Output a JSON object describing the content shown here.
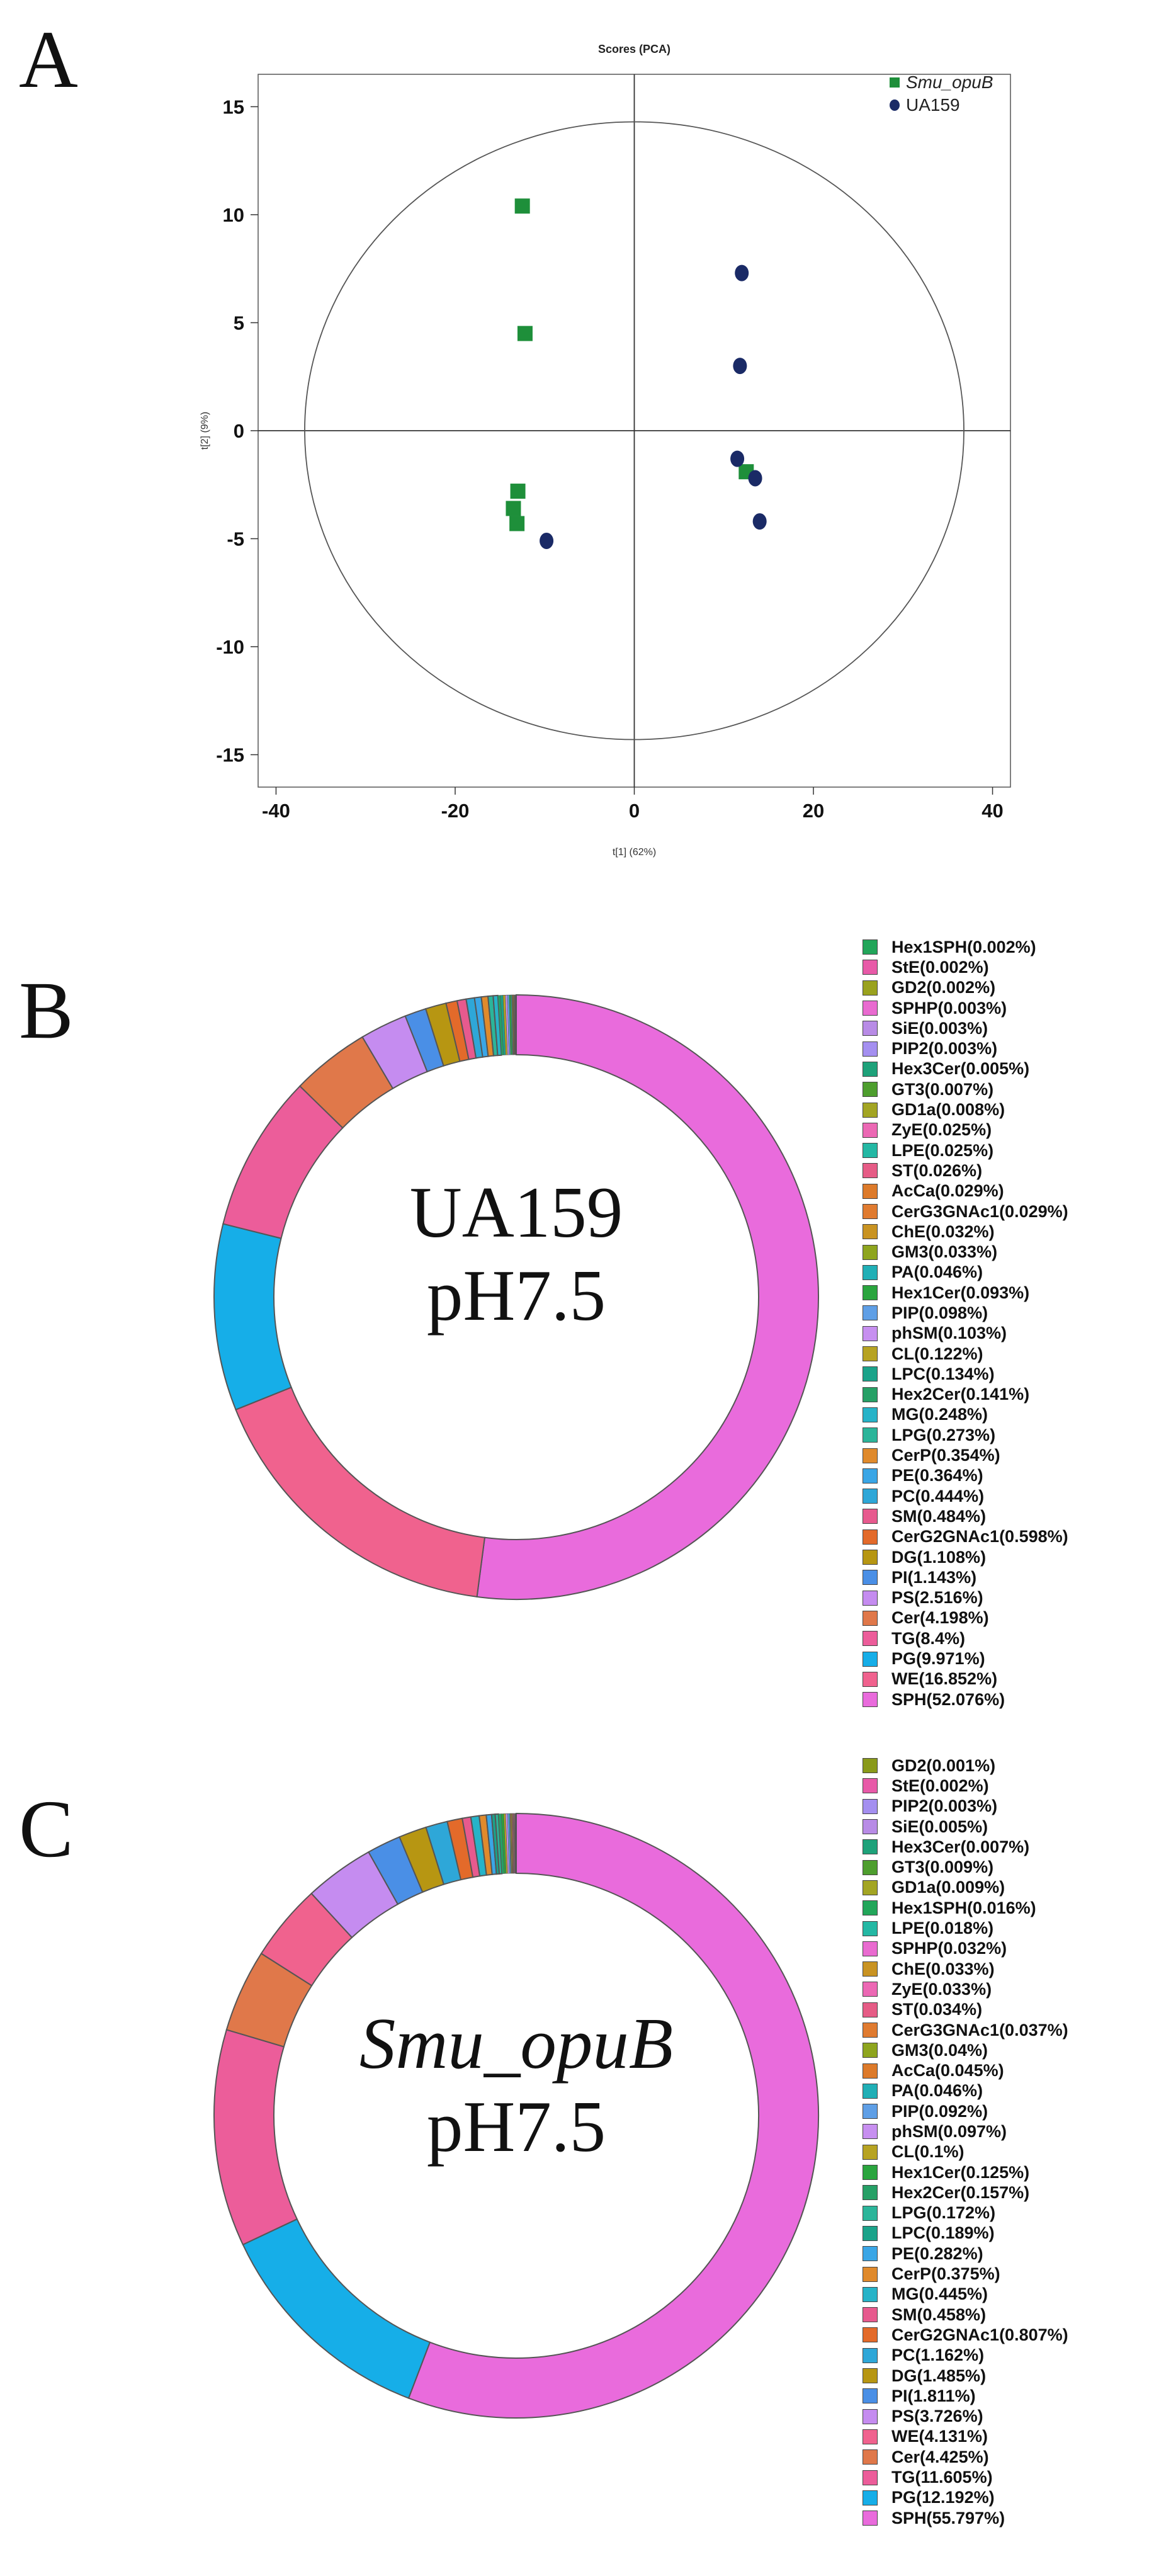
{
  "panels": {
    "a": "A",
    "b": "B",
    "c": "C"
  },
  "chart_data": [
    {
      "type": "scatter",
      "title": "Scores (PCA)",
      "xlabel": "t[1] (62%)",
      "ylabel": "t[2] (9%)",
      "xlim": [
        -42,
        42
      ],
      "ylim": [
        -16.5,
        16.5
      ],
      "xticks": [
        -40,
        -20,
        0,
        20,
        40
      ],
      "yticks": [
        -15,
        -10,
        -5,
        0,
        5,
        10,
        15
      ],
      "ellipse": {
        "rx": 36.8,
        "ry": 14.3
      },
      "series": [
        {
          "name": "Smu_opuB",
          "marker": "square",
          "color": "#1e8f3a",
          "points": [
            [
              -12.5,
              10.4
            ],
            [
              -12.2,
              4.5
            ],
            [
              -13.0,
              -2.8
            ],
            [
              -13.5,
              -3.6
            ],
            [
              -13.1,
              -4.3
            ],
            [
              12.5,
              -1.9
            ]
          ]
        },
        {
          "name": "UA159",
          "marker": "circle",
          "color": "#1a2a66",
          "points": [
            [
              12.0,
              7.3
            ],
            [
              11.8,
              3.0
            ],
            [
              11.5,
              -1.3
            ],
            [
              13.5,
              -2.2
            ],
            [
              14.0,
              -4.2
            ],
            [
              -9.8,
              -5.1
            ]
          ]
        }
      ]
    },
    {
      "type": "pie",
      "center_line1": "UA159",
      "center_line2": "pH7.5",
      "slices": [
        {
          "label": "Hex1SPH(0.002%)",
          "value": 0.002,
          "color": "#22a65a"
        },
        {
          "label": "StE(0.002%)",
          "value": 0.002,
          "color": "#e85aa8"
        },
        {
          "label": "GD2(0.002%)",
          "value": 0.002,
          "color": "#9aa21e"
        },
        {
          "label": "SPHP(0.003%)",
          "value": 0.003,
          "color": "#e96bd0"
        },
        {
          "label": "SiE(0.003%)",
          "value": 0.003,
          "color": "#b88be6"
        },
        {
          "label": "PIP2(0.003%)",
          "value": 0.003,
          "color": "#a48ff0"
        },
        {
          "label": "Hex3Cer(0.005%)",
          "value": 0.005,
          "color": "#1ea27a"
        },
        {
          "label": "GT3(0.007%)",
          "value": 0.007,
          "color": "#4e9e2e"
        },
        {
          "label": "GD1a(0.008%)",
          "value": 0.008,
          "color": "#a3a523"
        },
        {
          "label": "ZyE(0.025%)",
          "value": 0.025,
          "color": "#ec68b4"
        },
        {
          "label": "LPE(0.025%)",
          "value": 0.025,
          "color": "#24b8a4"
        },
        {
          "label": "ST(0.026%)",
          "value": 0.026,
          "color": "#e65c86"
        },
        {
          "label": "AcCa(0.029%)",
          "value": 0.029,
          "color": "#dd7a2a"
        },
        {
          "label": "CerG3GNAc1(0.029%)",
          "value": 0.029,
          "color": "#e07b30"
        },
        {
          "label": "ChE(0.032%)",
          "value": 0.032,
          "color": "#c99322"
        },
        {
          "label": "GM3(0.033%)",
          "value": 0.033,
          "color": "#8ea51e"
        },
        {
          "label": "PA(0.046%)",
          "value": 0.046,
          "color": "#20afb6"
        },
        {
          "label": "Hex1Cer(0.093%)",
          "value": 0.093,
          "color": "#2aa53e"
        },
        {
          "label": "PIP(0.098%)",
          "value": 0.098,
          "color": "#5f9fe6"
        },
        {
          "label": "phSM(0.103%)",
          "value": 0.103,
          "color": "#c78ff0"
        },
        {
          "label": "CL(0.122%)",
          "value": 0.122,
          "color": "#b7a322"
        },
        {
          "label": "LPC(0.134%)",
          "value": 0.134,
          "color": "#1aa38a"
        },
        {
          "label": "Hex2Cer(0.141%)",
          "value": 0.141,
          "color": "#26a066"
        },
        {
          "label": "MG(0.248%)",
          "value": 0.248,
          "color": "#26b3c8"
        },
        {
          "label": "LPG(0.273%)",
          "value": 0.273,
          "color": "#2bb59a"
        },
        {
          "label": "CerP(0.354%)",
          "value": 0.354,
          "color": "#e08a2c"
        },
        {
          "label": "PE(0.364%)",
          "value": 0.364,
          "color": "#3aa6e6"
        },
        {
          "label": "PC(0.444%)",
          "value": 0.444,
          "color": "#2ea7d8"
        },
        {
          "label": "SM(0.484%)",
          "value": 0.484,
          "color": "#e75a8e"
        },
        {
          "label": "CerG2GNAc1(0.598%)",
          "value": 0.598,
          "color": "#e36a2a"
        },
        {
          "label": "DG(1.108%)",
          "value": 1.108,
          "color": "#b79612"
        },
        {
          "label": "PI(1.143%)",
          "value": 1.143,
          "color": "#4a8fe6"
        },
        {
          "label": "PS(2.516%)",
          "value": 2.516,
          "color": "#c58cf0"
        },
        {
          "label": "Cer(4.198%)",
          "value": 4.198,
          "color": "#e0784a"
        },
        {
          "label": "TG(8.4%)",
          "value": 8.4,
          "color": "#ec5d9a"
        },
        {
          "label": "PG(9.971%)",
          "value": 9.971,
          "color": "#16aee8"
        },
        {
          "label": "WE(16.852%)",
          "value": 16.852,
          "color": "#f0628e"
        },
        {
          "label": "SPH(52.076%)",
          "value": 52.076,
          "color": "#e96bdc"
        }
      ]
    },
    {
      "type": "pie",
      "center_line1": "Smu_opuB",
      "center_line2": "pH7.5",
      "slices": [
        {
          "label": "GD2(0.001%)",
          "value": 0.001,
          "color": "#8a9a1a"
        },
        {
          "label": "StE(0.002%)",
          "value": 0.002,
          "color": "#e85aa8"
        },
        {
          "label": "PIP2(0.003%)",
          "value": 0.003,
          "color": "#a48ff0"
        },
        {
          "label": "SiE(0.005%)",
          "value": 0.005,
          "color": "#b88be6"
        },
        {
          "label": "Hex3Cer(0.007%)",
          "value": 0.007,
          "color": "#1ea27a"
        },
        {
          "label": "GT3(0.009%)",
          "value": 0.009,
          "color": "#4e9e2e"
        },
        {
          "label": "GD1a(0.009%)",
          "value": 0.009,
          "color": "#a3a523"
        },
        {
          "label": "Hex1SPH(0.016%)",
          "value": 0.016,
          "color": "#22a65a"
        },
        {
          "label": "LPE(0.018%)",
          "value": 0.018,
          "color": "#24b8a4"
        },
        {
          "label": "SPHP(0.032%)",
          "value": 0.032,
          "color": "#e96bd0"
        },
        {
          "label": "ChE(0.033%)",
          "value": 0.033,
          "color": "#c99322"
        },
        {
          "label": "ZyE(0.033%)",
          "value": 0.033,
          "color": "#ec68b4"
        },
        {
          "label": "ST(0.034%)",
          "value": 0.034,
          "color": "#e65c86"
        },
        {
          "label": "CerG3GNAc1(0.037%)",
          "value": 0.037,
          "color": "#e07b30"
        },
        {
          "label": "GM3(0.04%)",
          "value": 0.04,
          "color": "#8ea51e"
        },
        {
          "label": "AcCa(0.045%)",
          "value": 0.045,
          "color": "#dd7a2a"
        },
        {
          "label": "PA(0.046%)",
          "value": 0.046,
          "color": "#20afb6"
        },
        {
          "label": "PIP(0.092%)",
          "value": 0.092,
          "color": "#5f9fe6"
        },
        {
          "label": "phSM(0.097%)",
          "value": 0.097,
          "color": "#c78ff0"
        },
        {
          "label": "CL(0.1%)",
          "value": 0.1,
          "color": "#b7a322"
        },
        {
          "label": "Hex1Cer(0.125%)",
          "value": 0.125,
          "color": "#2aa53e"
        },
        {
          "label": "Hex2Cer(0.157%)",
          "value": 0.157,
          "color": "#26a066"
        },
        {
          "label": "LPG(0.172%)",
          "value": 0.172,
          "color": "#2bb59a"
        },
        {
          "label": "LPC(0.189%)",
          "value": 0.189,
          "color": "#1aa38a"
        },
        {
          "label": "PE(0.282%)",
          "value": 0.282,
          "color": "#3aa6e6"
        },
        {
          "label": "CerP(0.375%)",
          "value": 0.375,
          "color": "#e08a2c"
        },
        {
          "label": "MG(0.445%)",
          "value": 0.445,
          "color": "#26b3c8"
        },
        {
          "label": "SM(0.458%)",
          "value": 0.458,
          "color": "#e75a8e"
        },
        {
          "label": "CerG2GNAc1(0.807%)",
          "value": 0.807,
          "color": "#e36a2a"
        },
        {
          "label": "PC(1.162%)",
          "value": 1.162,
          "color": "#2ea7d8"
        },
        {
          "label": "DG(1.485%)",
          "value": 1.485,
          "color": "#b79612"
        },
        {
          "label": "PI(1.811%)",
          "value": 1.811,
          "color": "#4a8fe6"
        },
        {
          "label": "PS(3.726%)",
          "value": 3.726,
          "color": "#c58cf0"
        },
        {
          "label": "WE(4.131%)",
          "value": 4.131,
          "color": "#f0628e"
        },
        {
          "label": "Cer(4.425%)",
          "value": 4.425,
          "color": "#e0784a"
        },
        {
          "label": "TG(11.605%)",
          "value": 11.605,
          "color": "#ec5d9a"
        },
        {
          "label": "PG(12.192%)",
          "value": 12.192,
          "color": "#16aee8"
        },
        {
          "label": "SPH(55.797%)",
          "value": 55.797,
          "color": "#e96bdc"
        }
      ]
    }
  ]
}
